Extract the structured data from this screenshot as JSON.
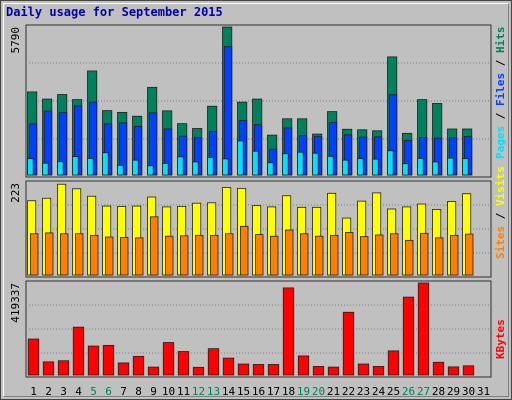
{
  "chart_data": {
    "type": "bar",
    "title": "Daily usage for September 2015",
    "categories": [
      "1",
      "2",
      "3",
      "4",
      "5",
      "6",
      "7",
      "8",
      "9",
      "10",
      "11",
      "12",
      "13",
      "14",
      "15",
      "16",
      "17",
      "18",
      "19",
      "20",
      "21",
      "22",
      "23",
      "24",
      "25",
      "26",
      "27",
      "28",
      "29",
      "30",
      "31"
    ],
    "weekend_days": [
      "5",
      "6",
      "12",
      "13",
      "19",
      "20",
      "26",
      "27"
    ],
    "panels": [
      {
        "id": "hits",
        "max_label": "5790",
        "ymax": 5790,
        "legend": [
          "Pages",
          "Files",
          "Hits"
        ],
        "series": [
          {
            "name": "Hits",
            "color": "#00805c",
            "values": [
              3250,
              2970,
              3150,
              2950,
              4070,
              2520,
              2450,
              2300,
              3430,
              2510,
              2010,
              1820,
              2690,
              5790,
              2850,
              2970,
              1560,
              2200,
              2200,
              1600,
              2480,
              1790,
              1770,
              1730,
              4620,
              1630,
              2950,
              2800,
              1800,
              1800,
              0
            ]
          },
          {
            "name": "Files",
            "color": "#0040ff",
            "values": [
              2000,
              2500,
              2450,
              2700,
              2850,
              2000,
              2040,
              1900,
              2430,
              1800,
              1520,
              1460,
              1700,
              5020,
              2130,
              1970,
              1010,
              1840,
              1540,
              1500,
              2050,
              1570,
              1480,
              1490,
              3140,
              1350,
              1470,
              1440,
              1460,
              1500,
              0
            ]
          },
          {
            "name": "Pages",
            "color": "#00e0ff",
            "values": [
              640,
              460,
              520,
              720,
              650,
              870,
              380,
              580,
              360,
              450,
              710,
              510,
              680,
              630,
              1330,
              930,
              480,
              830,
              890,
              850,
              730,
              580,
              640,
              620,
              950,
              440,
              650,
              510,
              660,
              640,
              0
            ]
          }
        ]
      },
      {
        "id": "visits",
        "max_label": "223",
        "ymax": 223,
        "legend": [
          "Sites",
          "Visits"
        ],
        "series": [
          {
            "name": "Visits",
            "color": "#ffff00",
            "values": [
              180,
              186,
              220,
              209,
              191,
              167,
              166,
              167,
              189,
              165,
              166,
              174,
              175,
              212,
              210,
              168,
              165,
              192,
              164,
              164,
              198,
              138,
              179,
              199,
              160,
              165,
              172,
              159,
              178,
              197,
              0
            ]
          },
          {
            "name": "Sites",
            "color": "#ff8000",
            "values": [
              100,
              102,
              100,
              100,
              96,
              92,
              91,
              90,
              141,
              94,
              95,
              96,
              96,
              100,
              118,
              98,
              94,
              109,
              100,
              94,
              96,
              103,
              93,
              97,
              100,
              84,
              101,
              90,
              96,
              99,
              0
            ]
          }
        ]
      },
      {
        "id": "kbytes",
        "max_label": "419337",
        "ymax": 419337,
        "legend": [
          "KBytes"
        ],
        "series": [
          {
            "name": "KBytes",
            "color": "#ff0000",
            "values": [
              164000,
              60000,
              65000,
              218000,
              132000,
              135000,
              55000,
              85000,
              36000,
              148000,
              107000,
              35000,
              120000,
              77000,
              50000,
              48000,
              48000,
              397000,
              87000,
              39000,
              36000,
              286000,
              50000,
              39000,
              110000,
              355000,
              419337,
              58000,
              37000,
              42000,
              0
            ]
          }
        ]
      }
    ]
  }
}
